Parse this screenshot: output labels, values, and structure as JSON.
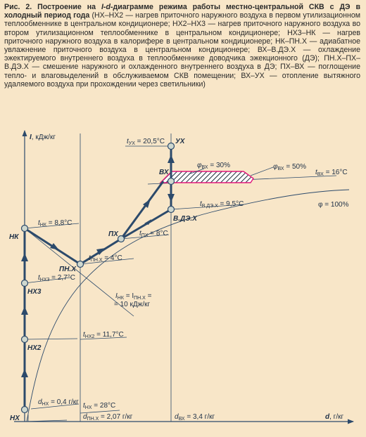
{
  "caption": {
    "prefix": "Рис. 2. ",
    "title_bold": "Построение на ",
    "title_ld": "I-d",
    "title_rest": "-диаграмме режима работы местно-центральной СКВ с ДЭ в холодный период года ",
    "body": "(НХ–НХ2 — нагрев приточного наружного воздуха в первом утилизационном теплообменнике в центральном кондиционере; НХ2–НХ3 — нагрев приточного наружного воздуха во втором утилизационном теплообменнике в центральном кондиционере; НХ3–НК — нагрев приточного наружного воздуха в калорифере в центральном кондиционере; НК–ПН.Х — адиабатное увлажнение приточного воздуха в центральном кондиционере; ВХ–В.ДЭ.Х — охлаждение эжектируемого внутреннего воздуха в теплообменнике доводчика эжекционного (ДЭ); ПН.Х–ПХ–В.ДЭ.Х — смешение наружного и охлажденного внутреннего воздуха в ДЭ; ПХ–ВХ — поглощение тепло- и влаговыделений в обслуживаемом СКВ помещении; ВХ–УХ — отопление вытяжного удаляемого воздуха при прохождении через светильники)"
  },
  "axes": {
    "y_label_sym": "I",
    "y_label_unit": ", кДж/кг",
    "x_label_sym": "d",
    "x_label_unit": ", г/кг"
  },
  "points": {
    "NX": "НХ",
    "NX2": "НХ2",
    "NX3": "НХ3",
    "NK": "НК",
    "PNX": "ПН.Х",
    "PX": "ПХ",
    "VDEX": "В.ДЭ.Х",
    "VX": "ВХ",
    "UX": "УХ"
  },
  "annotations": {
    "t_ux": "tУХ = 20,5°C",
    "t_ux_sym": "t",
    "t_ux_sub": "УХ",
    "t_ux_val": " = 20,5°C",
    "t_vx_sym": "t",
    "t_vx_sub": "ВХ",
    "t_vx_val": " = 16°C",
    "phi_vx30_sym": "φ",
    "phi_vx30_sub": "ВХ",
    "phi_vx30_val": " = 30%",
    "phi_vx50_sym": "φ",
    "phi_vx50_sub": "ВХ",
    "phi_vx50_val": " = 50%",
    "t_vde_sym": "t",
    "t_vde_sub": "В.ДЭ.Х",
    "t_vde_val": " = 9,5°C",
    "phi100": "φ = 100%",
    "t_px_sym": "t",
    "t_px_sub": "ПХ",
    "t_px_val": " = 8°C",
    "t_nk_sym": "t",
    "t_nk_sub": "НК",
    "t_nk_val": " = 8,8°C",
    "t_pnx_sym": "t",
    "t_pnx_sub": "ПН.Х",
    "t_pnx_val": " = 4°C",
    "t_nx3_sym": "t",
    "t_nx3_sub": "НХ3",
    "t_nx3_val": " = 2,7°C",
    "i_eq_line1_a": "I",
    "i_eq_line1_sub1": "НК",
    "i_eq_line1_b": " = I",
    "i_eq_line1_sub2": "ПН.Х",
    "i_eq_line1_c": " =",
    "i_eq_line2": "= 10 кДж/кг",
    "t_nx2_sym": "t",
    "t_nx2_sub": "НХ2",
    "t_nx2_val": " = 11,7°C",
    "d_nx_sym": "d",
    "d_nx_sub": "НХ",
    "d_nx_val": " = 0,4 г/кг",
    "t_nx_sym": "t",
    "t_nx_sub": "НХ",
    "t_nx_val": " = 28°C",
    "d_pnx_sym": "d",
    "d_pnx_sub": "ПН.Х",
    "d_pnx_val": " = 2,07 г/кг",
    "d_vx_sym": "d",
    "d_vx_sub": "ВХ",
    "d_vx_val": " = 3,4 г/кг"
  },
  "colors": {
    "line": "#2c4a6b",
    "hatch": "#e0177a",
    "background": "#f8e6c8"
  }
}
